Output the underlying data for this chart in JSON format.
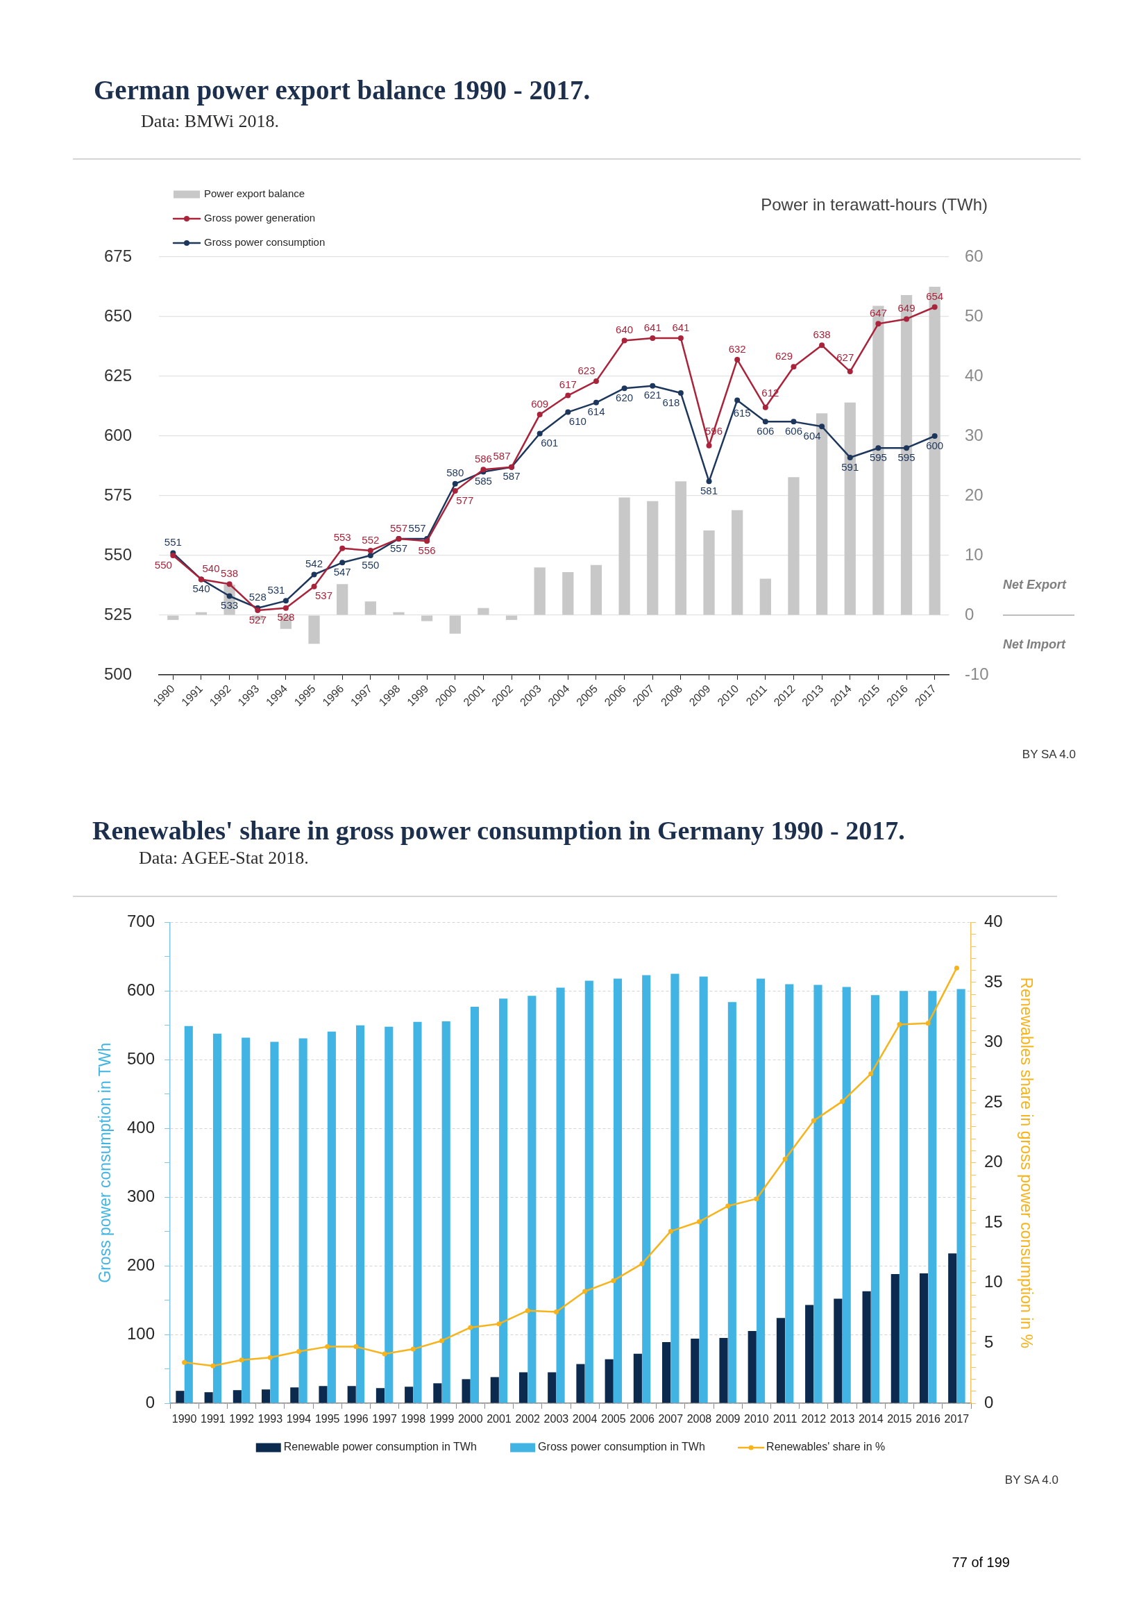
{
  "chart_data": [
    {
      "type": "bar",
      "title": "German power export balance 1990 - 2017.",
      "subtitle": "Data: BMWi 2018.",
      "y2label": "Power in terawatt-hours (TWh)",
      "categories": [
        "1990",
        "1991",
        "1992",
        "1993",
        "1994",
        "1995",
        "1996",
        "1997",
        "1998",
        "1999",
        "2000",
        "2001",
        "2002",
        "2003",
        "2004",
        "2005",
        "2006",
        "2007",
        "2008",
        "2009",
        "2010",
        "2011",
        "2012",
        "2013",
        "2014",
        "2015",
        "2016",
        "2017"
      ],
      "series": [
        {
          "name": "Power export balance",
          "type": "bar",
          "axis": "y2",
          "color": "#c8c8c8",
          "values": [
            -0.8,
            0.5,
            5.1,
            -0.8,
            -2.3,
            -4.8,
            5.2,
            2.3,
            0.5,
            -1.0,
            -3.1,
            1.2,
            -0.8,
            8.0,
            7.2,
            8.4,
            19.7,
            19.1,
            22.4,
            14.2,
            17.6,
            6.1,
            23.1,
            33.8,
            35.6,
            51.8,
            53.6,
            55.0
          ]
        },
        {
          "name": "Gross power generation",
          "type": "line",
          "color": "#a9233a",
          "values": [
            550,
            540,
            538,
            527,
            528,
            537,
            553,
            552,
            557,
            556,
            577,
            586,
            587,
            609,
            617,
            623,
            640,
            641,
            641,
            596,
            632,
            612,
            629,
            638,
            627,
            647,
            649,
            654
          ],
          "value_labels": [
            "550",
            "540",
            "538",
            "527",
            "528",
            "537",
            "553",
            "552",
            "557",
            "556",
            "577",
            "586",
            "587",
            "609",
            "617",
            "623",
            "640",
            "641",
            "641",
            "596",
            "632",
            "612",
            "629",
            "638",
            "627",
            "647",
            "649",
            "654"
          ]
        },
        {
          "name": "Gross power consumption",
          "type": "line",
          "color": "#1c365c",
          "values": [
            551,
            540,
            533,
            528,
            531,
            542,
            547,
            550,
            557,
            557,
            580,
            585,
            587,
            601,
            610,
            614,
            620,
            621,
            618,
            581,
            615,
            606,
            606,
            604,
            591,
            595,
            595,
            600
          ],
          "value_labels": [
            "551",
            "540",
            "533",
            "528",
            "531",
            "542",
            "547",
            "550",
            "557",
            "557",
            "580",
            "585",
            "587",
            "601",
            "610",
            "614",
            "620",
            "621",
            "618",
            "581",
            "615",
            "606",
            "606",
            "604",
            "591",
            "595",
            "595",
            "600"
          ]
        }
      ],
      "ylim": [
        500,
        675
      ],
      "yticks": [
        500,
        525,
        550,
        575,
        600,
        625,
        650,
        675
      ],
      "y2lim": [
        -10,
        60
      ],
      "y2ticks": [
        -10,
        0,
        10,
        20,
        30,
        40,
        50,
        60
      ],
      "grid": "y",
      "legend": "top left",
      "marker": "circle",
      "line_style": "solid",
      "annotations": [
        "Net Export",
        "Net Import",
        "BY SA 4.0"
      ]
    },
    {
      "type": "bar",
      "title": "Renewables' share in gross power consumption in Germany 1990 - 2017.",
      "subtitle": "Data: AGEE-Stat 2018.",
      "ylabel": "Gross power consumption in TWh",
      "y2label": "Renewables share in gross power consumption in %",
      "categories": [
        "1990",
        "1991",
        "1992",
        "1993",
        "1994",
        "1995",
        "1996",
        "1997",
        "1998",
        "1999",
        "2000",
        "2001",
        "2002",
        "2003",
        "2004",
        "2005",
        "2006",
        "2007",
        "2008",
        "2009",
        "2010",
        "2011",
        "2012",
        "2013",
        "2014",
        "2015",
        "2016",
        "2017"
      ],
      "series": [
        {
          "name": "Renewable power consumption in TWh",
          "type": "bar",
          "color": "#0c2a4d",
          "values": [
            18,
            16,
            19,
            20,
            23,
            25,
            25,
            22,
            24,
            29,
            35,
            38,
            45,
            45,
            57,
            64,
            72,
            89,
            94,
            95,
            105,
            124,
            143,
            152,
            163,
            188,
            189,
            218
          ]
        },
        {
          "name": "Gross power consumption in TWh",
          "type": "bar",
          "color": "#42b4e4",
          "values": [
            549,
            538,
            532,
            526,
            531,
            541,
            550,
            548,
            555,
            556,
            577,
            589,
            593,
            605,
            615,
            618,
            623,
            625,
            621,
            584,
            618,
            610,
            609,
            606,
            594,
            600,
            600,
            603
          ]
        },
        {
          "name": "Renewables' share in %",
          "type": "line",
          "axis": "y2",
          "color": "#f6b31b",
          "values": [
            3.4,
            3.1,
            3.6,
            3.8,
            4.3,
            4.7,
            4.7,
            4.1,
            4.5,
            5.2,
            6.3,
            6.6,
            7.7,
            7.6,
            9.3,
            10.2,
            11.6,
            14.3,
            15.1,
            16.4,
            17.0,
            20.3,
            23.5,
            25.1,
            27.4,
            31.5,
            31.6,
            36.2
          ]
        }
      ],
      "ylim": [
        0,
        700
      ],
      "yticks": [
        0,
        {
          "value": 50,
          "label": null
        },
        100,
        {
          "value": 150,
          "label": null
        },
        200,
        {
          "value": 250,
          "label": null
        },
        300,
        {
          "value": 350,
          "label": null
        },
        400,
        {
          "value": 450,
          "label": null
        },
        500,
        {
          "value": 550,
          "label": null
        },
        600,
        {
          "value": 650,
          "label": null
        },
        700
      ],
      "y2lim": [
        0,
        40
      ],
      "y2ticks": [
        0,
        {
          "value": 1,
          "label": null
        },
        {
          "value": 2,
          "label": null
        },
        {
          "value": 3,
          "label": null
        },
        {
          "value": 4,
          "label": null
        },
        5,
        {
          "value": 6,
          "label": null
        },
        {
          "value": 7,
          "label": null
        },
        {
          "value": 8,
          "label": null
        },
        {
          "value": 9,
          "label": null
        },
        10,
        {
          "value": 11,
          "label": null
        },
        {
          "value": 12,
          "label": null
        },
        {
          "value": 13,
          "label": null
        },
        {
          "value": 14,
          "label": null
        },
        15,
        {
          "value": 16,
          "label": null
        },
        {
          "value": 17,
          "label": null
        },
        {
          "value": 18,
          "label": null
        },
        {
          "value": 19,
          "label": null
        },
        20,
        {
          "value": 21,
          "label": null
        },
        {
          "value": 22,
          "label": null
        },
        {
          "value": 23,
          "label": null
        },
        {
          "value": 24,
          "label": null
        },
        25,
        {
          "value": 26,
          "label": null
        },
        {
          "value": 27,
          "label": null
        },
        {
          "value": 28,
          "label": null
        },
        {
          "value": 29,
          "label": null
        },
        30,
        {
          "value": 31,
          "label": null
        },
        {
          "value": 32,
          "label": null
        },
        {
          "value": 33,
          "label": null
        },
        {
          "value": 34,
          "label": null
        },
        35,
        {
          "value": 36,
          "label": null
        },
        {
          "value": 37,
          "label": null
        },
        {
          "value": 38,
          "label": null
        },
        {
          "value": 39,
          "label": null
        },
        40
      ],
      "grid": "y",
      "legend": "bottom",
      "marker": "circle",
      "line_style": "solid",
      "annotations": [
        "BY SA 4.0",
        "77 of 199"
      ]
    }
  ]
}
